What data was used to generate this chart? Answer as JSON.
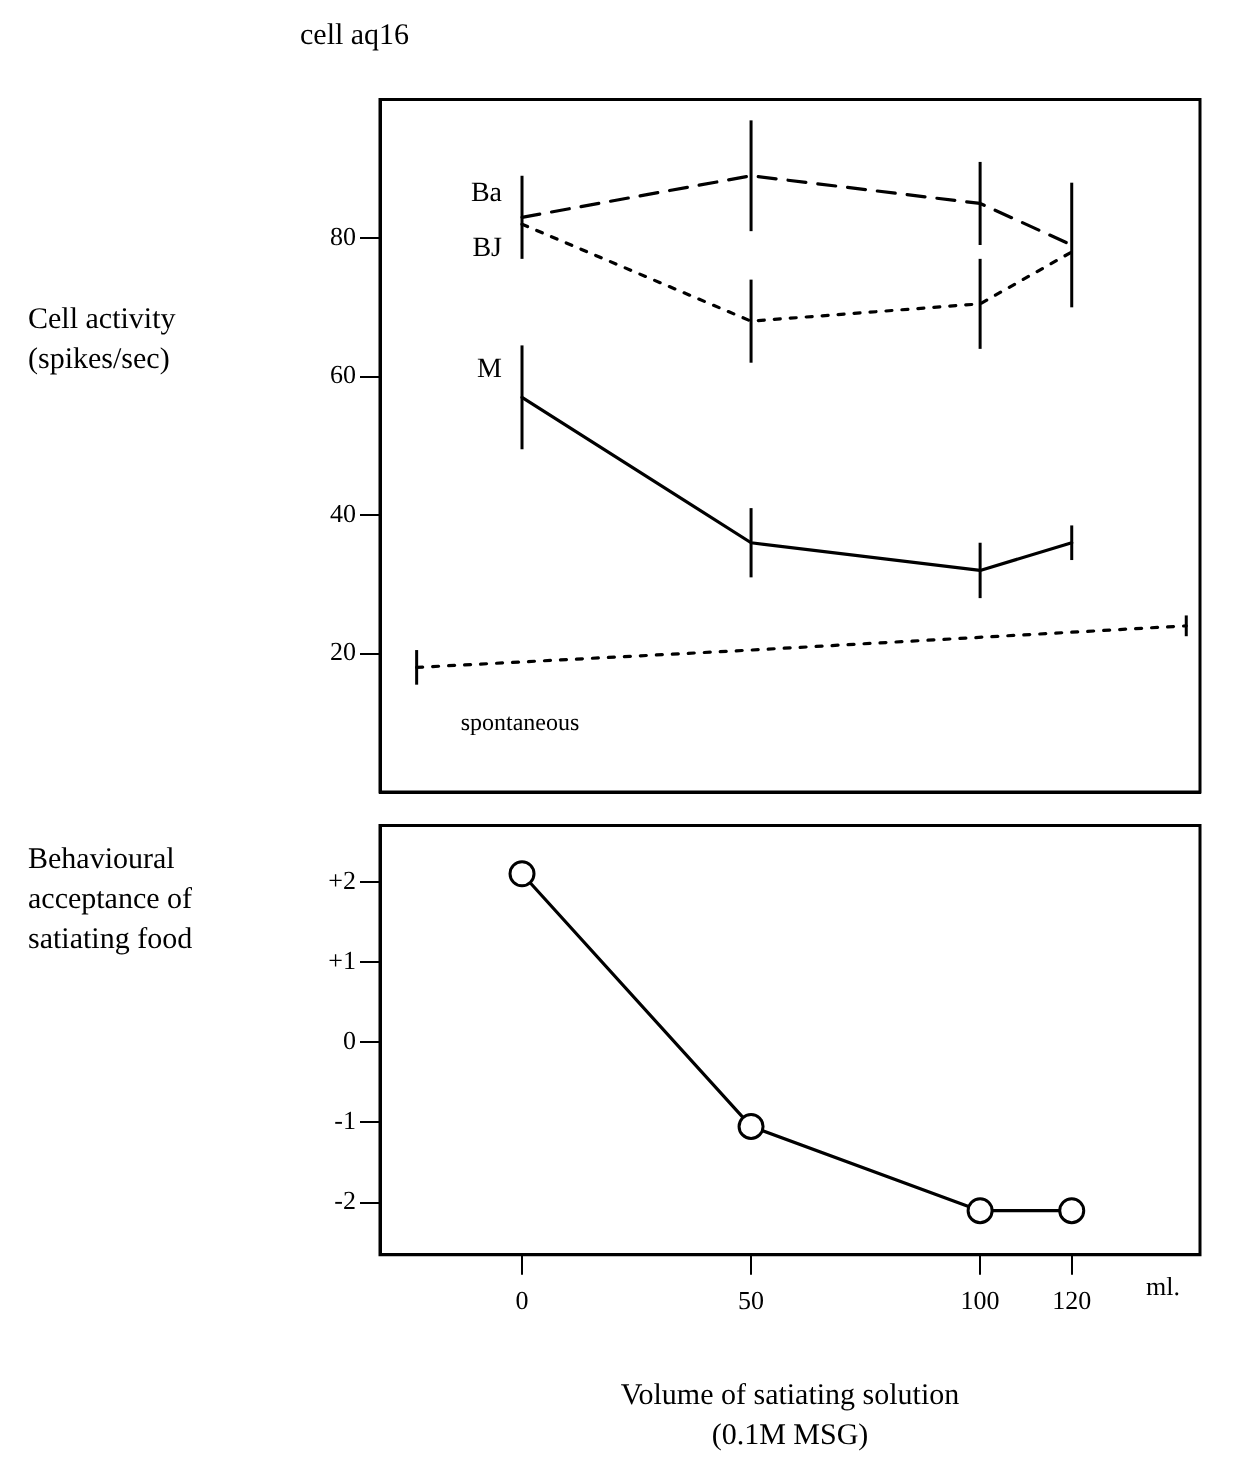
{
  "chart_data": [
    {
      "type": "line",
      "title": "cell aq16",
      "ylabel": "Cell activity (spikes/sec)",
      "xlim": [
        -31,
        148
      ],
      "ylim": [
        0,
        100
      ],
      "yticks": [
        20,
        40,
        60,
        80
      ],
      "tick_labels": "y",
      "grid": false,
      "legend": false,
      "marker": "none",
      "series": [
        {
          "name": "Ba",
          "color": "#000000",
          "line_style": "dashed",
          "x": [
            0,
            50,
            100,
            120
          ],
          "values": [
            83,
            89,
            85,
            79
          ],
          "errors": [
            6,
            8,
            6,
            9
          ]
        },
        {
          "name": "BJ",
          "color": "#000000",
          "line_style": "dotted",
          "x": [
            0,
            50,
            100,
            120
          ],
          "values": [
            82,
            68,
            70.5,
            78
          ],
          "errors": [
            null,
            6,
            6.5,
            null
          ]
        },
        {
          "name": "M",
          "color": "#000000",
          "line_style": "solid",
          "x": [
            0,
            50,
            100,
            120
          ],
          "values": [
            57,
            36,
            32,
            36
          ],
          "errors": [
            7.5,
            5,
            4,
            2.5
          ]
        },
        {
          "name": "spontaneous",
          "color": "#000000",
          "line_style": "dotted",
          "x": [
            -23,
            50,
            145
          ],
          "values": [
            18,
            20.5,
            24
          ],
          "errors": [
            2.5,
            null,
            1.5
          ]
        }
      ]
    },
    {
      "type": "line",
      "ylabel": "Behavioural acceptance of satiating food",
      "xlabel": "Volume of satiating solution (0.1M MSG)",
      "annotations": [
        "ml."
      ],
      "xlim": [
        -31,
        148
      ],
      "xticks": [
        0,
        50,
        100,
        120
      ],
      "ylim": [
        -2.65,
        2.7
      ],
      "yticks": [
        {
          "value": 2,
          "label": "+2"
        },
        {
          "value": 1,
          "label": "+1"
        },
        0,
        -1,
        -2
      ],
      "grid": false,
      "legend": false,
      "marker": "circle",
      "series": [
        {
          "color": "#000000",
          "line_style": "solid",
          "x": [
            0,
            50,
            100,
            120
          ],
          "values": [
            2.1,
            -1.05,
            -2.1,
            -2.1
          ]
        }
      ]
    }
  ]
}
